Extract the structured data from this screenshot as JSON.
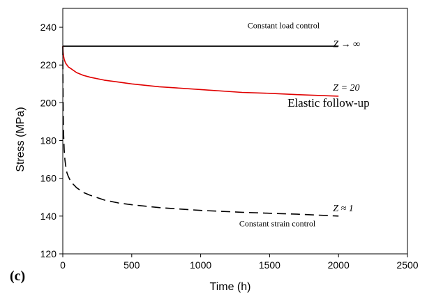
{
  "panel_label": "(c)",
  "chart_data": {
    "type": "line",
    "xlabel": "Time (h)",
    "ylabel": "Stress (MPa)",
    "xlim": [
      0,
      2500
    ],
    "ylim": [
      120,
      250
    ],
    "xticks": [
      0,
      500,
      1000,
      1500,
      2000,
      2500
    ],
    "yticks": [
      120,
      140,
      160,
      180,
      200,
      220,
      240
    ],
    "grid": false,
    "series": [
      {
        "color": "#000000",
        "dash": "solid",
        "x": [
          0,
          2000
        ],
        "y": [
          230,
          230
        ]
      },
      {
        "color": "#e00000",
        "dash": "solid",
        "x": [
          0,
          2,
          5,
          10,
          20,
          40,
          60,
          100,
          150,
          200,
          300,
          400,
          500,
          700,
          1000,
          1300,
          1500,
          1700,
          2000
        ],
        "y": [
          230,
          227,
          225,
          223,
          221,
          219,
          218,
          216,
          214.5,
          213.5,
          212,
          211,
          210,
          208.5,
          207,
          205.5,
          205,
          204.3,
          203.5
        ]
      },
      {
        "color": "#000000",
        "dash": "dashed",
        "x": [
          0,
          1,
          3,
          5,
          10,
          15,
          20,
          30,
          40,
          60,
          100,
          150,
          200,
          300,
          400,
          500,
          700,
          1000,
          1300,
          1500,
          1700,
          2000
        ],
        "y": [
          230,
          212,
          195,
          185,
          175,
          170,
          167,
          163,
          161,
          158,
          155,
          152.5,
          151,
          148.5,
          147,
          146,
          144.5,
          143,
          142,
          141.5,
          141,
          140
        ]
      }
    ],
    "annotations": [
      {
        "text": "Constant load control",
        "x": 1340,
        "y": 239.5,
        "size": 12,
        "italic": false
      },
      {
        "text": "Z → ∞",
        "x": 1960,
        "y": 229.5,
        "size": 14,
        "italic": true
      },
      {
        "text": "Z = 20",
        "x": 1960,
        "y": 206.5,
        "size": 14,
        "italic": true
      },
      {
        "text": "Elastic follow-up",
        "x": 1630,
        "y": 198,
        "size": 17,
        "italic": false
      },
      {
        "text": "Z ≈ 1",
        "x": 1960,
        "y": 142.5,
        "size": 14,
        "italic": true
      },
      {
        "text": "Constant strain control",
        "x": 1280,
        "y": 134.5,
        "size": 12,
        "italic": false
      }
    ]
  }
}
